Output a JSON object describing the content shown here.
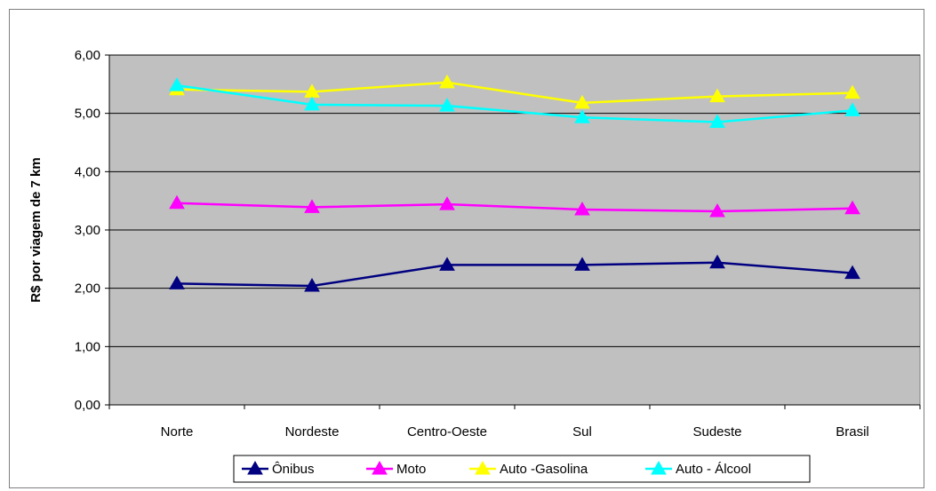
{
  "chart_data": {
    "type": "line",
    "title": "",
    "xlabel": "",
    "ylabel": "R$ por viagem de 7 km",
    "categories": [
      "Norte",
      "Nordeste",
      "Centro-Oeste",
      "Sul",
      "Sudeste",
      "Brasil"
    ],
    "ylim": [
      0,
      6
    ],
    "yticks": [
      "0,00",
      "1,00",
      "2,00",
      "3,00",
      "4,00",
      "5,00",
      "6,00"
    ],
    "grid": true,
    "legend_position": "bottom",
    "plot_background": "#c0c0c0",
    "series": [
      {
        "name": "Ônibus",
        "color": "#000080",
        "values": [
          2.08,
          2.04,
          2.4,
          2.4,
          2.44,
          2.26
        ]
      },
      {
        "name": "Moto",
        "color": "#ff00ff",
        "values": [
          3.46,
          3.39,
          3.44,
          3.35,
          3.32,
          3.37
        ]
      },
      {
        "name": "Auto -Gasolina",
        "color": "#ffff00",
        "values": [
          5.41,
          5.37,
          5.53,
          5.18,
          5.29,
          5.35
        ]
      },
      {
        "name": "Auto - Álcool",
        "color": "#00ffff",
        "values": [
          5.48,
          5.15,
          5.13,
          4.93,
          4.85,
          5.05
        ]
      }
    ]
  }
}
